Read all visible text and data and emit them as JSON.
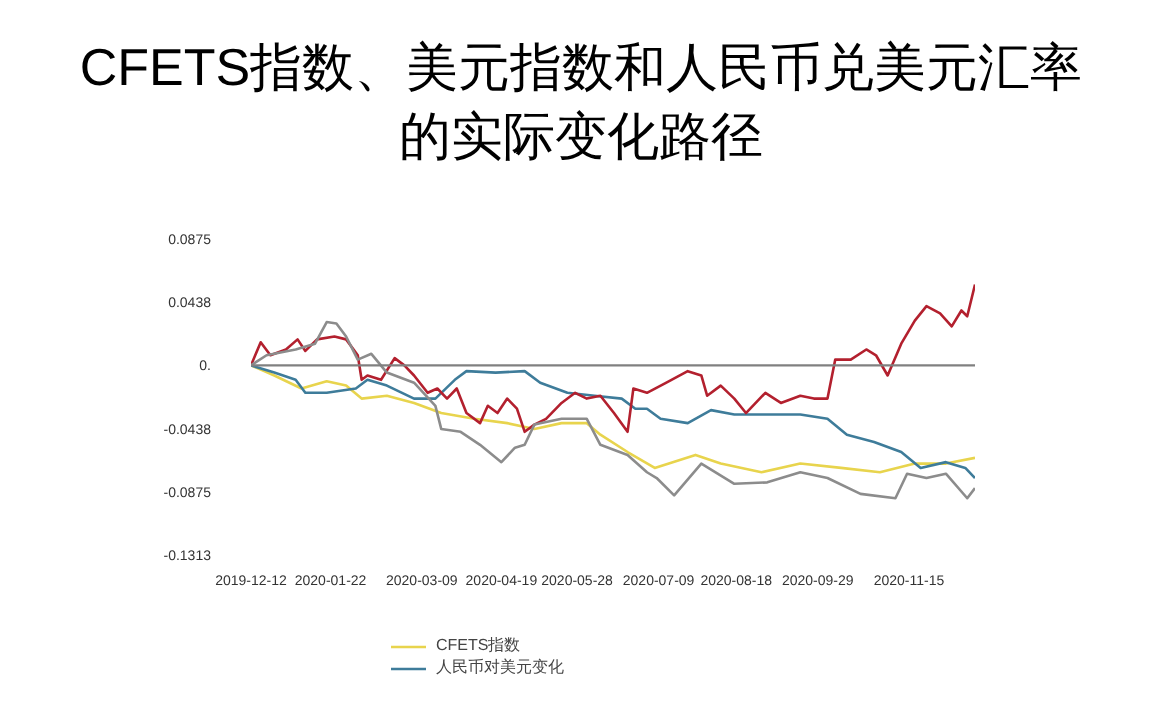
{
  "chart_data": {
    "type": "line",
    "title": "CFETS指数、美元指数和人民币兑美元汇率的实际变化路径",
    "xlim": [
      "2019-12-12",
      "2020-12-19"
    ],
    "xticks": [
      "2019-12-12",
      "2020-01-22",
      "2020-03-09",
      "2020-04-19",
      "2020-05-28",
      "2020-07-09",
      "2020-08-18",
      "2020-09-29",
      "2020-11-15"
    ],
    "ylim": [
      -0.1313,
      0.0875
    ],
    "yticks": [
      0.0875,
      0.0438,
      {
        "value": 0,
        "label": "0."
      },
      -0.0438,
      -0.0875,
      -0.1313
    ],
    "grid": false,
    "legend": "bottom",
    "marker": "none",
    "line_style": "solid",
    "ref_lines": [
      {
        "axis": "y",
        "value": 0,
        "color": "#808080"
      }
    ],
    "series": [
      {
        "name": "CFETS指数",
        "color": "#e8d44d",
        "x": [
          "2019-12-12",
          "2019-12-24",
          "2020-01-07",
          "2020-01-20",
          "2020-01-30",
          "2020-02-07",
          "2020-02-20",
          "2020-03-05",
          "2020-03-19",
          "2020-04-05",
          "2020-04-22",
          "2020-05-06",
          "2020-05-20",
          "2020-06-02",
          "2020-06-09",
          "2020-06-23",
          "2020-07-07",
          "2020-07-28",
          "2020-08-10",
          "2020-08-31",
          "2020-09-20",
          "2020-10-11",
          "2020-10-31",
          "2020-11-18",
          "2020-12-04",
          "2020-12-19"
        ],
        "values": [
          0,
          -0.007,
          -0.016,
          -0.011,
          -0.014,
          -0.023,
          -0.021,
          -0.026,
          -0.033,
          -0.037,
          -0.04,
          -0.044,
          -0.04,
          -0.04,
          -0.048,
          -0.06,
          -0.071,
          -0.062,
          -0.068,
          -0.074,
          -0.068,
          -0.071,
          -0.074,
          -0.068,
          -0.068,
          -0.064
        ]
      },
      {
        "name": "人民币对美元变化",
        "color": "#3e7c9a",
        "x": [
          "2019-12-12",
          "2019-12-24",
          "2020-01-04",
          "2020-01-09",
          "2020-01-20",
          "2020-02-04",
          "2020-02-10",
          "2020-02-20",
          "2020-03-05",
          "2020-03-16",
          "2020-03-26",
          "2020-04-01",
          "2020-04-16",
          "2020-05-01",
          "2020-05-09",
          "2020-05-23",
          "2020-06-06",
          "2020-06-20",
          "2020-06-27",
          "2020-07-03",
          "2020-07-10",
          "2020-07-24",
          "2020-08-05",
          "2020-08-17",
          "2020-09-03",
          "2020-09-20",
          "2020-10-04",
          "2020-10-14",
          "2020-10-28",
          "2020-11-11",
          "2020-11-21",
          "2020-12-04",
          "2020-12-14",
          "2020-12-19"
        ],
        "values": [
          0,
          -0.005,
          -0.01,
          -0.019,
          -0.019,
          -0.016,
          -0.01,
          -0.014,
          -0.023,
          -0.023,
          -0.01,
          -0.004,
          -0.005,
          -0.004,
          -0.012,
          -0.019,
          -0.021,
          -0.023,
          -0.03,
          -0.03,
          -0.037,
          -0.04,
          -0.031,
          -0.034,
          -0.034,
          -0.034,
          -0.037,
          -0.048,
          -0.053,
          -0.06,
          -0.071,
          -0.067,
          -0.071,
          -0.078
        ]
      },
      {
        "color": "#b3202e",
        "x": [
          "2019-12-12",
          "2019-12-17",
          "2019-12-22",
          "2019-12-30",
          "2020-01-05",
          "2020-01-09",
          "2020-01-15",
          "2020-01-24",
          "2020-01-30",
          "2020-02-05",
          "2020-02-07",
          "2020-02-10",
          "2020-02-17",
          "2020-02-24",
          "2020-02-29",
          "2020-03-05",
          "2020-03-12",
          "2020-03-17",
          "2020-03-22",
          "2020-03-27",
          "2020-04-01",
          "2020-04-08",
          "2020-04-12",
          "2020-04-17",
          "2020-04-22",
          "2020-04-27",
          "2020-05-01",
          "2020-05-06",
          "2020-05-12",
          "2020-05-20",
          "2020-05-27",
          "2020-06-02",
          "2020-06-09",
          "2020-06-16",
          "2020-06-23",
          "2020-06-26",
          "2020-07-03",
          "2020-07-13",
          "2020-07-24",
          "2020-07-31",
          "2020-08-03",
          "2020-08-10",
          "2020-08-17",
          "2020-08-23",
          "2020-09-02",
          "2020-09-10",
          "2020-09-20",
          "2020-09-27",
          "2020-10-04",
          "2020-10-08",
          "2020-10-16",
          "2020-10-24",
          "2020-10-29",
          "2020-11-04",
          "2020-11-11",
          "2020-11-18",
          "2020-11-24",
          "2020-12-01",
          "2020-12-07",
          "2020-12-12",
          "2020-12-15",
          "2020-12-19"
        ],
        "values": [
          0,
          0.016,
          0.007,
          0.011,
          0.018,
          0.01,
          0.018,
          0.02,
          0.018,
          0.007,
          -0.01,
          -0.007,
          -0.01,
          0.005,
          0,
          -0.007,
          -0.019,
          -0.016,
          -0.023,
          -0.016,
          -0.033,
          -0.04,
          -0.028,
          -0.033,
          -0.023,
          -0.03,
          -0.046,
          -0.041,
          -0.037,
          -0.026,
          -0.019,
          -0.023,
          -0.021,
          -0.033,
          -0.046,
          -0.016,
          -0.019,
          -0.012,
          -0.004,
          -0.007,
          -0.021,
          -0.014,
          -0.023,
          -0.033,
          -0.019,
          -0.026,
          -0.021,
          -0.023,
          -0.023,
          0.004,
          0.004,
          0.011,
          0.007,
          -0.007,
          0.015,
          0.031,
          0.041,
          0.036,
          0.027,
          0.038,
          0.034,
          0.056
        ]
      },
      {
        "color": "#8c8c8c",
        "x": [
          "2019-12-12",
          "2019-12-20",
          "2020-01-04",
          "2020-01-14",
          "2020-01-20",
          "2020-01-25",
          "2020-01-30",
          "2020-02-05",
          "2020-02-12",
          "2020-02-20",
          "2020-03-05",
          "2020-03-16",
          "2020-03-19",
          "2020-03-29",
          "2020-04-08",
          "2020-04-19",
          "2020-04-26",
          "2020-05-01",
          "2020-05-06",
          "2020-05-20",
          "2020-06-02",
          "2020-06-09",
          "2020-06-23",
          "2020-07-03",
          "2020-07-08",
          "2020-07-17",
          "2020-07-31",
          "2020-08-17",
          "2020-09-03",
          "2020-09-20",
          "2020-10-04",
          "2020-10-21",
          "2020-11-08",
          "2020-11-14",
          "2020-11-24",
          "2020-12-04",
          "2020-12-15",
          "2020-12-19"
        ],
        "values": [
          0,
          0.007,
          0.011,
          0.015,
          0.03,
          0.029,
          0.02,
          0.004,
          0.008,
          -0.005,
          -0.012,
          -0.028,
          -0.044,
          -0.046,
          -0.055,
          -0.067,
          -0.057,
          -0.055,
          -0.041,
          -0.037,
          -0.037,
          -0.055,
          -0.062,
          -0.074,
          -0.078,
          -0.09,
          -0.068,
          -0.082,
          -0.081,
          -0.074,
          -0.078,
          -0.089,
          -0.092,
          -0.075,
          -0.078,
          -0.075,
          -0.092,
          -0.085
        ]
      }
    ]
  }
}
